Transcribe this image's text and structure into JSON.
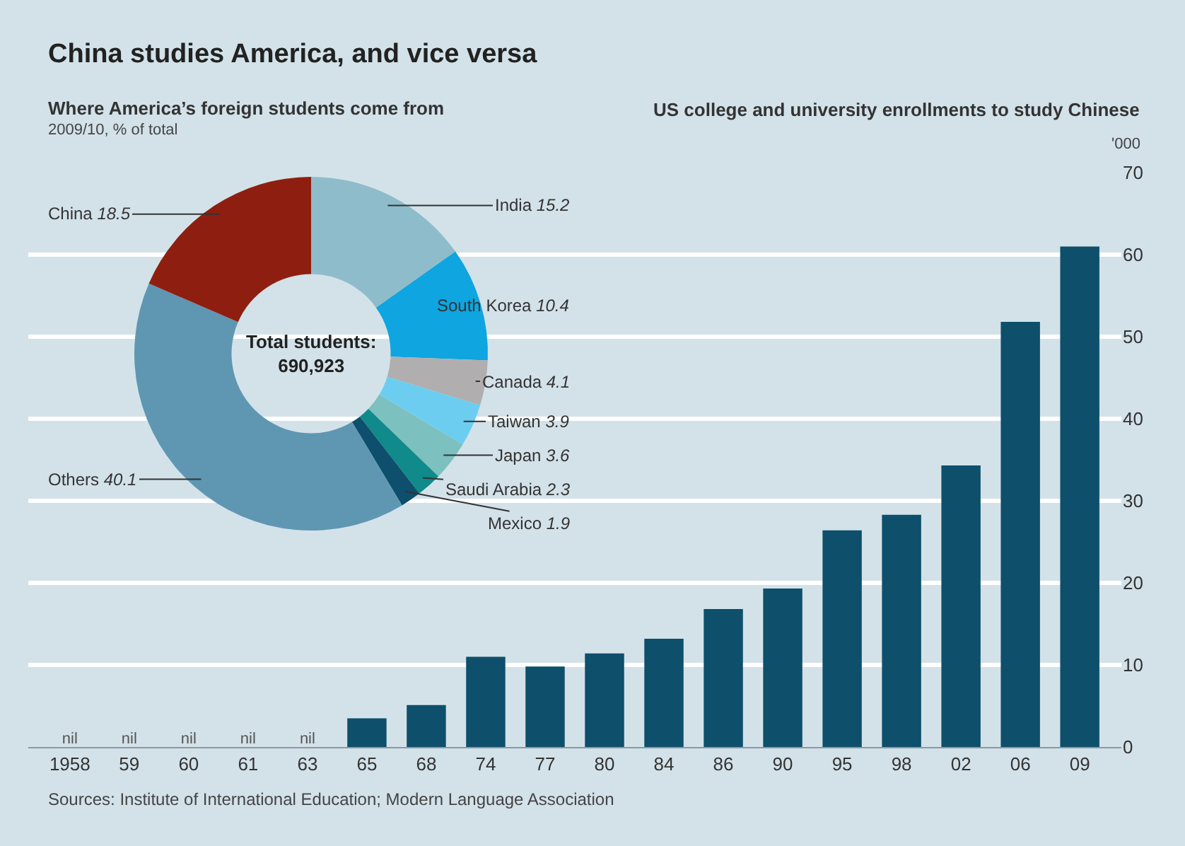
{
  "chart_data": [
    {
      "type": "donut",
      "title": "Where America’s foreign students come from",
      "subtitle": "2009/10, % of total",
      "categories": [
        "India",
        "South Korea",
        "Canada",
        "Taiwan",
        "Japan",
        "Saudi Arabia",
        "Mexico",
        "Others",
        "China"
      ],
      "values": [
        15.2,
        10.4,
        4.1,
        3.9,
        3.6,
        2.3,
        1.9,
        40.1,
        18.5
      ],
      "colors": [
        "#8fbccb",
        "#0ea5e0",
        "#b0aeae",
        "#6ccdf0",
        "#7cc0c0",
        "#108a8a",
        "#0d4f6c",
        "#5f97b3",
        "#8e1f10"
      ],
      "data_labels": true,
      "legend": false,
      "annotations": [
        "Total students:\n690,923"
      ]
    },
    {
      "type": "bar",
      "title": "China studies America, and vice versa",
      "subtitle": "US college and university enrollments to study Chinese",
      "ylabel": "'000",
      "categories": [
        "1958",
        "59",
        "60",
        "61",
        "63",
        "65",
        "68",
        "74",
        "77",
        "80",
        "84",
        "86",
        "90",
        "95",
        "98",
        "02",
        "06",
        "09"
      ],
      "values": [
        0,
        0,
        0,
        0,
        0,
        3.5,
        5.1,
        11.0,
        9.8,
        11.4,
        13.2,
        16.8,
        19.3,
        26.4,
        28.3,
        34.3,
        51.8,
        61.0
      ],
      "value_labels": [
        "nil",
        "nil",
        "nil",
        "nil",
        "nil",
        null,
        null,
        null,
        null,
        null,
        null,
        null,
        null,
        null,
        null,
        null,
        null,
        null
      ],
      "color": "#0e4f6b",
      "ylim": [
        0,
        70
      ],
      "yticks": [
        0,
        10,
        20,
        30,
        40,
        50,
        60,
        70
      ],
      "grid": "y",
      "legend": false,
      "annotations": [
        "Sources: Institute of International Education; Modern Language Association"
      ]
    }
  ]
}
